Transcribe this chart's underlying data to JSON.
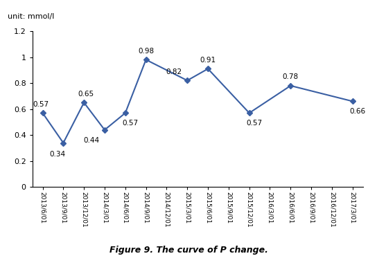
{
  "all_x_labels": [
    "2013/6/01",
    "2013/9/01",
    "2013/12/01",
    "2014/3/01",
    "2014/6/01",
    "2014/9/01",
    "2014/12/01",
    "2015/3/01",
    "2015/6/01",
    "2015/9/01",
    "2015/12/01",
    "2016/3/01",
    "2016/6/01",
    "2016/9/01",
    "2016/12/01",
    "2017/3/01"
  ],
  "x_indices": [
    0,
    1,
    2,
    3,
    4,
    5,
    7,
    8,
    10,
    12,
    15
  ],
  "values": [
    0.57,
    0.34,
    0.65,
    0.44,
    0.57,
    0.98,
    0.82,
    0.91,
    0.57,
    0.78,
    0.66
  ],
  "line_color": "#3A5FA3",
  "marker": "D",
  "marker_size": 4.5,
  "ylim": [
    0,
    1.2
  ],
  "yticks": [
    0,
    0.2,
    0.4,
    0.6,
    0.8,
    1.0,
    1.2
  ],
  "unit_text": "unit: mmol/l",
  "caption": "Figure 9. The curve of P change."
}
